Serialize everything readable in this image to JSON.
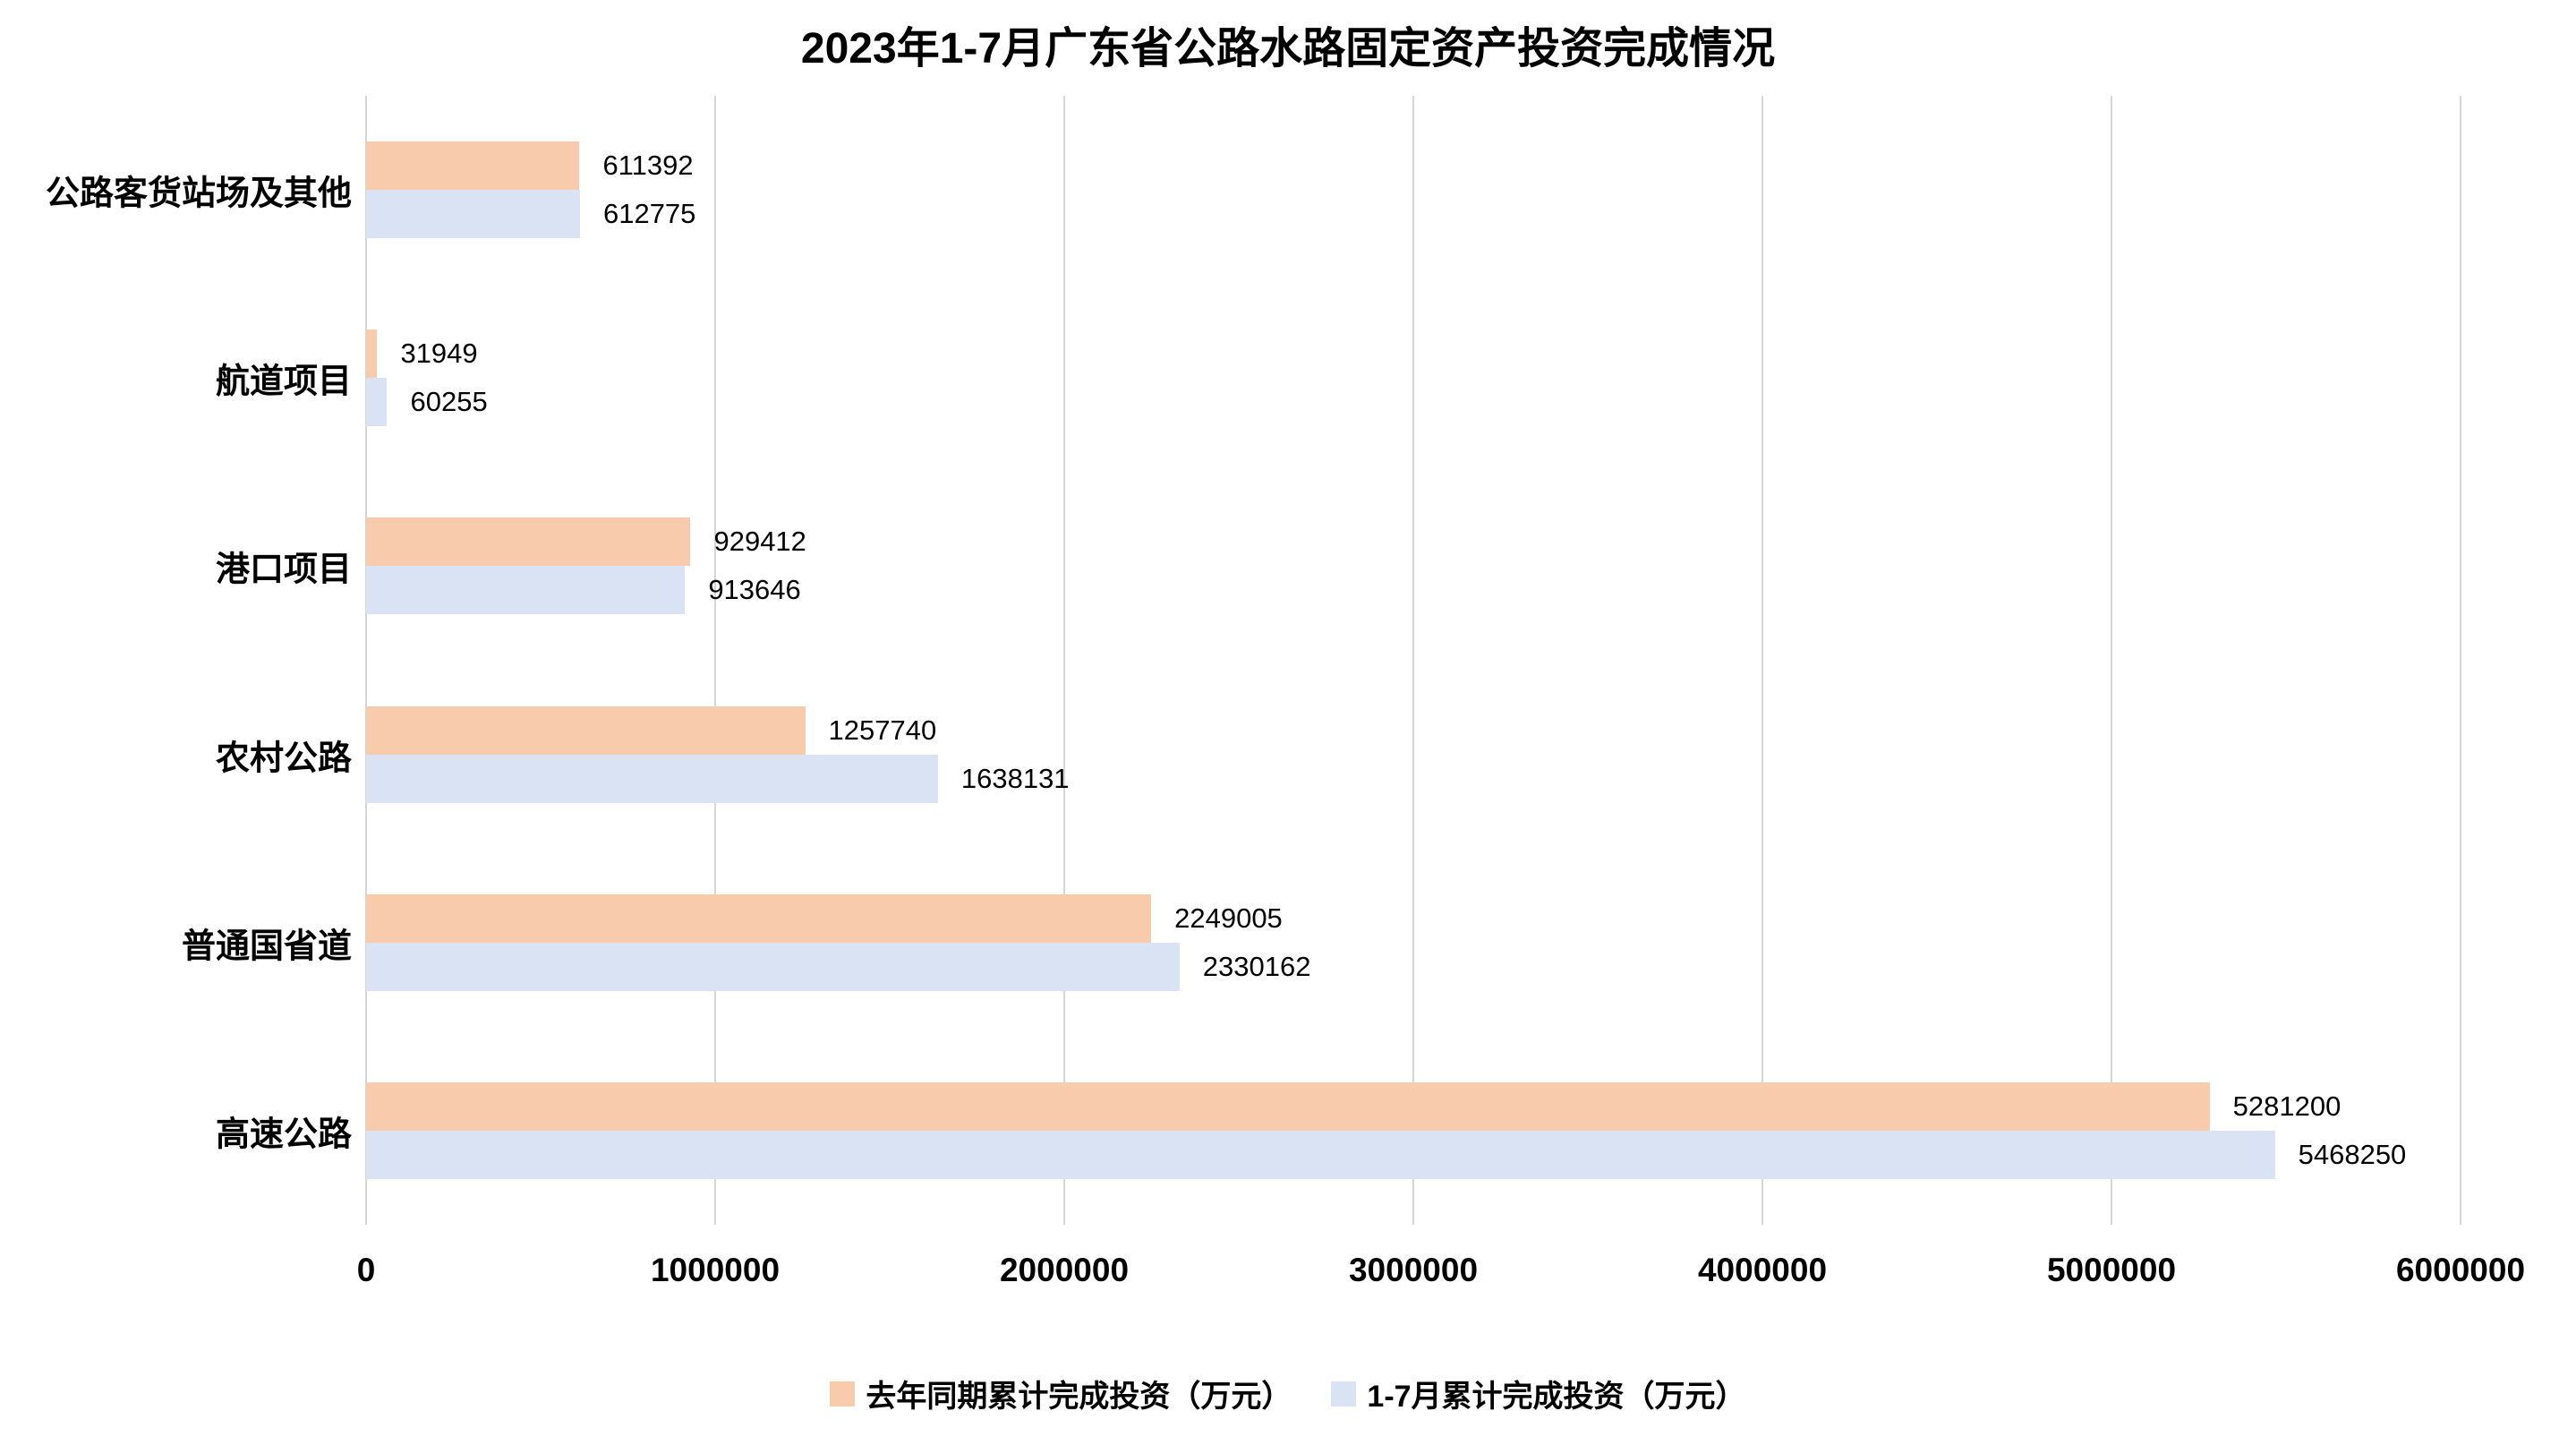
{
  "chart_data": {
    "type": "bar",
    "orientation": "horizontal",
    "title": "2023年1-7月广东省公路水路固定资产投资完成情况",
    "categories": [
      "公路客货站场及其他",
      "航道项目",
      "港口项目",
      "农村公路",
      "普通国省道",
      "高速公路"
    ],
    "series": [
      {
        "name": "去年同期累计完成投资（万元）",
        "color": "#F8CBAD",
        "values": [
          611392,
          31949,
          929412,
          1257740,
          2249005,
          5281200
        ]
      },
      {
        "name": "1-7月累计完成投资（万元）",
        "color": "#DAE3F3",
        "values": [
          612775,
          60255,
          913646,
          1638131,
          2330162,
          5468250
        ]
      }
    ],
    "x_ticks": [
      0,
      1000000,
      2000000,
      3000000,
      4000000,
      5000000,
      6000000
    ],
    "xlim": [
      0,
      6000000
    ],
    "grid": "vertical-only",
    "gridline_color": "#D6D6D6",
    "legend_position": "bottom",
    "data_labels": true,
    "background": "#FFFFFF",
    "text_color": "#000000"
  }
}
